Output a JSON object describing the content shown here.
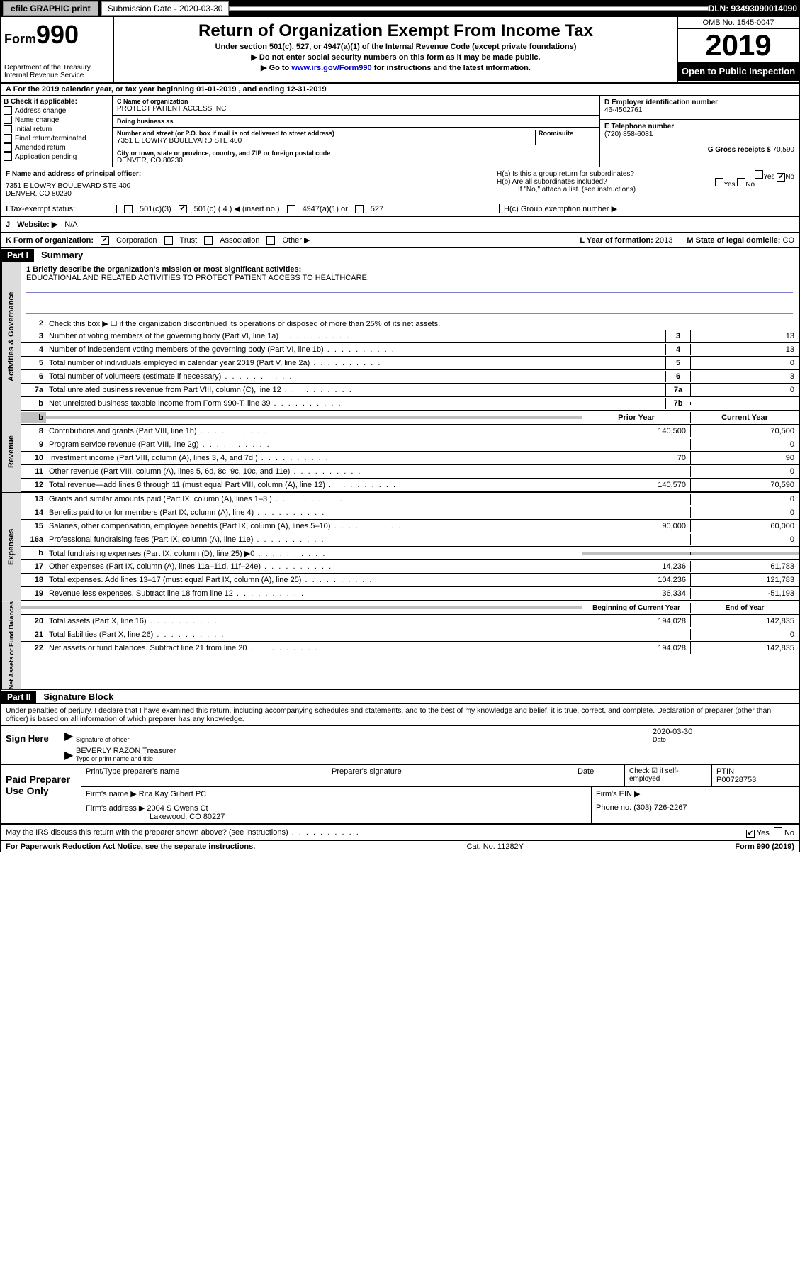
{
  "topbar": {
    "efile": "efile GRAPHIC print",
    "submission_label": "Submission Date - 2020-03-30",
    "dln": "DLN: 93493090014090"
  },
  "header": {
    "form_prefix": "Form",
    "form_number": "990",
    "dept": "Department of the Treasury",
    "irs": "Internal Revenue Service",
    "title": "Return of Organization Exempt From Income Tax",
    "subtitle1": "Under section 501(c), 527, or 4947(a)(1) of the Internal Revenue Code (except private foundations)",
    "subtitle2": "▶ Do not enter social security numbers on this form as it may be made public.",
    "subtitle3_pre": "▶ Go to ",
    "subtitle3_link": "www.irs.gov/Form990",
    "subtitle3_post": " for instructions and the latest information.",
    "omb": "OMB No. 1545-0047",
    "year": "2019",
    "open": "Open to Public Inspection"
  },
  "period": "A For the 2019 calendar year, or tax year beginning 01-01-2019    , and ending 12-31-2019",
  "section_b": {
    "label": "B Check if applicable:",
    "opts": [
      "Address change",
      "Name change",
      "Initial return",
      "Final return/terminated",
      "Amended return",
      "Application pending"
    ]
  },
  "section_c": {
    "label": "C Name of organization",
    "name": "PROTECT PATIENT ACCESS INC",
    "dba_label": "Doing business as",
    "dba": "",
    "addr_label": "Number and street (or P.O. box if mail is not delivered to street address)",
    "room_label": "Room/suite",
    "addr": "7351 E LOWRY BOULEVARD STE 400",
    "city_label": "City or town, state or province, country, and ZIP or foreign postal code",
    "city": "DENVER, CO  80230"
  },
  "section_d": {
    "label": "D Employer identification number",
    "value": "46-4502761"
  },
  "section_e": {
    "label": "E Telephone number",
    "value": "(720) 858-6081"
  },
  "section_g": {
    "label": "G Gross receipts $",
    "value": "70,590"
  },
  "section_f": {
    "label": "F  Name and address of principal officer:",
    "addr1": "7351 E LOWRY BOULEVARD STE 400",
    "addr2": "DENVER, CO  80230"
  },
  "section_h": {
    "ha": "H(a)  Is this a group return for subordinates?",
    "hb": "H(b)  Are all subordinates included?",
    "hb_note": "If \"No,\" attach a list. (see instructions)",
    "hc": "H(c)  Group exemption number ▶"
  },
  "tax_status": {
    "label": "Tax-exempt status:",
    "c3": "501(c)(3)",
    "c4": "501(c) ( 4 ) ◀ (insert no.)",
    "a1": "4947(a)(1) or",
    "s527": "527"
  },
  "website": {
    "label": "Website: ▶",
    "value": "N/A"
  },
  "kform": {
    "label": "K Form of organization:",
    "corp": "Corporation",
    "trust": "Trust",
    "assoc": "Association",
    "other": "Other ▶",
    "year_label": "L Year of formation:",
    "year": "2013",
    "state_label": "M State of legal domicile:",
    "state": "CO"
  },
  "part1": {
    "header": "Part I",
    "title": "Summary",
    "line1_label": "1  Briefly describe the organization's mission or most significant activities:",
    "mission": "EDUCATIONAL AND RELATED ACTIVITIES TO PROTECT PATIENT ACCESS TO HEALTHCARE.",
    "line2": "Check this box ▶ ☐  if the organization discontinued its operations or disposed of more than 25% of its net assets.",
    "governance_lines": [
      {
        "num": "3",
        "text": "Number of voting members of the governing body (Part VI, line 1a)",
        "box": "3",
        "val": "13"
      },
      {
        "num": "4",
        "text": "Number of independent voting members of the governing body (Part VI, line 1b)",
        "box": "4",
        "val": "13"
      },
      {
        "num": "5",
        "text": "Total number of individuals employed in calendar year 2019 (Part V, line 2a)",
        "box": "5",
        "val": "0"
      },
      {
        "num": "6",
        "text": "Total number of volunteers (estimate if necessary)",
        "box": "6",
        "val": "3"
      },
      {
        "num": "7a",
        "text": "Total unrelated business revenue from Part VIII, column (C), line 12",
        "box": "7a",
        "val": "0"
      },
      {
        "num": "b",
        "text": "Net unrelated business taxable income from Form 990-T, line 39",
        "box": "7b",
        "val": ""
      }
    ],
    "prior_header": "Prior Year",
    "current_header": "Current Year",
    "revenue_lines": [
      {
        "num": "8",
        "text": "Contributions and grants (Part VIII, line 1h)",
        "prior": "140,500",
        "cur": "70,500"
      },
      {
        "num": "9",
        "text": "Program service revenue (Part VIII, line 2g)",
        "prior": "",
        "cur": "0"
      },
      {
        "num": "10",
        "text": "Investment income (Part VIII, column (A), lines 3, 4, and 7d )",
        "prior": "70",
        "cur": "90"
      },
      {
        "num": "11",
        "text": "Other revenue (Part VIII, column (A), lines 5, 6d, 8c, 9c, 10c, and 11e)",
        "prior": "",
        "cur": "0"
      },
      {
        "num": "12",
        "text": "Total revenue—add lines 8 through 11 (must equal Part VIII, column (A), line 12)",
        "prior": "140,570",
        "cur": "70,590"
      }
    ],
    "expense_lines": [
      {
        "num": "13",
        "text": "Grants and similar amounts paid (Part IX, column (A), lines 1–3 )",
        "prior": "",
        "cur": "0"
      },
      {
        "num": "14",
        "text": "Benefits paid to or for members (Part IX, column (A), line 4)",
        "prior": "",
        "cur": "0"
      },
      {
        "num": "15",
        "text": "Salaries, other compensation, employee benefits (Part IX, column (A), lines 5–10)",
        "prior": "90,000",
        "cur": "60,000"
      },
      {
        "num": "16a",
        "text": "Professional fundraising fees (Part IX, column (A), line 11e)",
        "prior": "",
        "cur": "0"
      },
      {
        "num": "b",
        "text": "Total fundraising expenses (Part IX, column (D), line 25) ▶0",
        "prior": "shaded",
        "cur": "shaded"
      },
      {
        "num": "17",
        "text": "Other expenses (Part IX, column (A), lines 11a–11d, 11f–24e)",
        "prior": "14,236",
        "cur": "61,783"
      },
      {
        "num": "18",
        "text": "Total expenses. Add lines 13–17 (must equal Part IX, column (A), line 25)",
        "prior": "104,236",
        "cur": "121,783"
      },
      {
        "num": "19",
        "text": "Revenue less expenses. Subtract line 18 from line 12",
        "prior": "36,334",
        "cur": "-51,193"
      }
    ],
    "net_header1": "Beginning of Current Year",
    "net_header2": "End of Year",
    "net_lines": [
      {
        "num": "20",
        "text": "Total assets (Part X, line 16)",
        "prior": "194,028",
        "cur": "142,835"
      },
      {
        "num": "21",
        "text": "Total liabilities (Part X, line 26)",
        "prior": "",
        "cur": "0"
      },
      {
        "num": "22",
        "text": "Net assets or fund balances. Subtract line 21 from line 20",
        "prior": "194,028",
        "cur": "142,835"
      }
    ],
    "vtabs": {
      "gov": "Activities & Governance",
      "rev": "Revenue",
      "exp": "Expenses",
      "net": "Net Assets or Fund Balances"
    }
  },
  "part2": {
    "header": "Part II",
    "title": "Signature Block",
    "declaration": "Under penalties of perjury, I declare that I have examined this return, including accompanying schedules and statements, and to the best of my knowledge and belief, it is true, correct, and complete. Declaration of preparer (other than officer) is based on all information of which preparer has any knowledge."
  },
  "sign": {
    "label": "Sign Here",
    "sig_label": "Signature of officer",
    "date": "2020-03-30",
    "date_label": "Date",
    "name": "BEVERLY RAZON Treasurer",
    "name_label": "Type or print name and title"
  },
  "paid": {
    "label": "Paid Preparer Use Only",
    "col1": "Print/Type preparer's name",
    "col2": "Preparer's signature",
    "col3": "Date",
    "col4_label": "Check ☑ if self-employed",
    "col5_label": "PTIN",
    "ptin": "P00728753",
    "firm_name_label": "Firm's name    ▶",
    "firm_name": "Rita Kay Gilbert PC",
    "firm_ein_label": "Firm's EIN ▶",
    "firm_addr_label": "Firm's address ▶",
    "firm_addr": "2004 S Owens Ct",
    "firm_city": "Lakewood, CO  80227",
    "phone_label": "Phone no.",
    "phone": "(303) 726-2267"
  },
  "footer": {
    "discuss": "May the IRS discuss this return with the preparer shown above? (see instructions)",
    "yes": "Yes",
    "no": "No",
    "paperwork": "For Paperwork Reduction Act Notice, see the separate instructions.",
    "cat": "Cat. No. 11282Y",
    "form": "Form 990 (2019)"
  }
}
